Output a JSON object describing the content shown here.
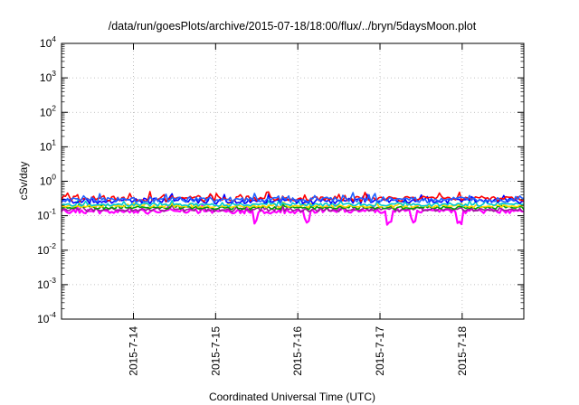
{
  "chart_data": {
    "type": "line",
    "title": "/data/run/goesPlots/archive/2015-07-18/18:00/flux/../bryn/5daysMoon.plot",
    "xlabel": "Coordinated Universal Time (UTC)",
    "ylabel": "cSv/day",
    "yscale": "log",
    "ylim": [
      0.0001,
      10000
    ],
    "xlim": [
      "2015-07-13 03:00",
      "2015-07-18 18:00"
    ],
    "grid": true,
    "x_ticks": [
      "2015-7-14",
      "2015-7-15",
      "2015-7-16",
      "2015-7-17",
      "2015-7-18"
    ],
    "y_ticks": [
      {
        "value": 0.0001,
        "base": "10",
        "exp": "-4"
      },
      {
        "value": 0.001,
        "base": "10",
        "exp": "-3"
      },
      {
        "value": 0.01,
        "base": "10",
        "exp": "-2"
      },
      {
        "value": 0.1,
        "base": "10",
        "exp": "-1"
      },
      {
        "value": 1,
        "base": "10",
        "exp": "0"
      },
      {
        "value": 10,
        "base": "10",
        "exp": "1"
      },
      {
        "value": 100,
        "base": "10",
        "exp": "2"
      },
      {
        "value": 1000,
        "base": "10",
        "exp": "3"
      },
      {
        "value": 10000,
        "base": "10",
        "exp": "4"
      }
    ],
    "series": [
      {
        "color": "#ff00ff",
        "base": 0.135,
        "spread": 0.09,
        "dips": [
          0.42,
          0.53,
          0.71,
          0.76,
          0.86
        ],
        "times": [
          "2015-07-13 03:00",
          "2015-07-14 00:00",
          "2015-07-15 00:00",
          "2015-07-16 00:00",
          "2015-07-17 00:00",
          "2015-07-18 00:00",
          "2015-07-18 18:00"
        ]
      },
      {
        "color": "#9b1d9b",
        "base": 0.15,
        "spread": 0.07,
        "dips": []
      },
      {
        "color": "#00a000",
        "base": 0.17,
        "spread": 0.06,
        "dips": []
      },
      {
        "color": "#ffd700",
        "base": 0.19,
        "spread": 0.05,
        "dips": []
      },
      {
        "color": "#00c8d0",
        "base": 0.21,
        "spread": 0.06,
        "dips": []
      },
      {
        "color": "#0000ff",
        "base": 0.27,
        "spread": 0.1,
        "dips": []
      },
      {
        "color": "#ff0000",
        "base": 0.315,
        "spread": 0.1,
        "dips": []
      },
      {
        "color": "#2060ff",
        "base": 0.295,
        "spread": 0.1,
        "dips": []
      }
    ]
  }
}
